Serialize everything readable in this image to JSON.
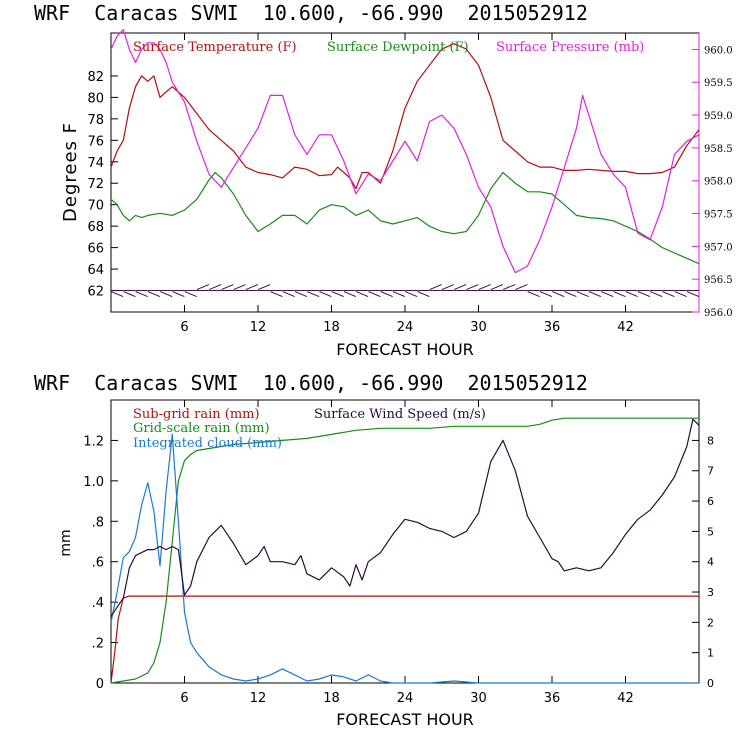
{
  "chart_data": [
    {
      "type": "line",
      "title": "WRF  Caracas SVMI  10.600, -66.990  2015052912",
      "xlabel": "FORECAST HOUR",
      "ylabel": "Degrees F",
      "y2label": "",
      "xlim": [
        0,
        48
      ],
      "ylim": [
        60,
        86
      ],
      "y2lim": [
        956.0,
        960.25
      ],
      "xticks": [
        6,
        12,
        18,
        24,
        30,
        36,
        42
      ],
      "xtick_labels": [
        "6",
        "12",
        "18",
        "24",
        "30",
        "36",
        "42"
      ],
      "yticks": [
        62,
        64,
        66,
        68,
        70,
        72,
        74,
        76,
        78,
        80,
        82
      ],
      "ytick_labels": [
        "62",
        "64",
        "66",
        "68",
        "70",
        "72",
        "74",
        "76",
        "78",
        "80",
        "82"
      ],
      "y2ticks": [
        956.0,
        956.5,
        957.0,
        957.5,
        958.0,
        958.5,
        959.0,
        959.5,
        960.0
      ],
      "y2tick_labels": [
        "956.0",
        "956.5",
        "957.0",
        "957.5",
        "958.0",
        "958.5",
        "959.0",
        "959.5",
        "960.0"
      ],
      "legend": [
        {
          "label": "Surface Temperature (F)",
          "color": "#b01010"
        },
        {
          "label": "Surface Dewpoint (F)",
          "color": "#1a8a1a"
        },
        {
          "label": "Surface Pressure (mb)",
          "color": "#e020e0"
        }
      ],
      "series": [
        {
          "name": "Surface Temperature (F)",
          "axis": "left",
          "color": "#b01010",
          "x": [
            0,
            0.5,
            1,
            1.5,
            2,
            2.5,
            3,
            3.5,
            4,
            4.5,
            5,
            5.5,
            6,
            7,
            8,
            9,
            10,
            11,
            12,
            13,
            14,
            15,
            16,
            17,
            18,
            18.5,
            19,
            19.5,
            20,
            20.5,
            21,
            22,
            23,
            24,
            25,
            26,
            27,
            28,
            29,
            30,
            31,
            32,
            33,
            34,
            35,
            36,
            37,
            38,
            39,
            40,
            41,
            42,
            43,
            44,
            45,
            46,
            47,
            48
          ],
          "values": [
            73.5,
            75,
            76,
            79,
            81,
            82,
            81.5,
            82,
            80,
            80.5,
            81,
            80.5,
            80,
            78.5,
            77,
            76,
            75,
            73.5,
            73,
            72.8,
            72.5,
            73.5,
            73.3,
            72.7,
            72.8,
            73.5,
            73,
            72.5,
            71.5,
            73,
            73,
            72,
            75,
            79,
            81.5,
            83,
            84.5,
            85,
            84.5,
            83,
            80,
            76,
            75,
            74,
            73.5,
            73.5,
            73.2,
            73.2,
            73.3,
            73.2,
            73.1,
            73.1,
            72.9,
            72.9,
            73,
            73.5,
            75.5,
            77
          ]
        },
        {
          "name": "Surface Dewpoint (F)",
          "axis": "left",
          "color": "#1a8a1a",
          "x": [
            0,
            0.5,
            1,
            1.5,
            2,
            2.5,
            3,
            4,
            5,
            6,
            7,
            8,
            8.5,
            9,
            10,
            11,
            12,
            13,
            14,
            15,
            16,
            17,
            18,
            19,
            20,
            21,
            22,
            23,
            24,
            25,
            26,
            27,
            28,
            29,
            30,
            31,
            32,
            33,
            34,
            35,
            36,
            37,
            38,
            39,
            40,
            41,
            42,
            43,
            44,
            45,
            46,
            47,
            48
          ],
          "values": [
            70.5,
            70,
            69,
            68.5,
            69,
            68.8,
            69,
            69.2,
            69,
            69.5,
            70.5,
            72.3,
            73,
            72.5,
            71,
            69,
            67.5,
            68.2,
            69,
            69,
            68.2,
            69.5,
            70,
            69.8,
            69,
            69.5,
            68.5,
            68.2,
            68.5,
            68.8,
            68,
            67.5,
            67.3,
            67.5,
            69,
            71.5,
            73,
            72,
            71.2,
            71.2,
            71,
            70,
            69,
            68.8,
            68.7,
            68.5,
            68,
            67.5,
            66.8,
            66,
            65.5,
            65,
            64.5
          ]
        },
        {
          "name": "Surface Pressure (mb)",
          "axis": "right",
          "color": "#e020e0",
          "x": [
            0,
            0.5,
            1,
            1.5,
            2,
            2.5,
            3,
            3.5,
            4,
            4.5,
            5,
            6,
            7,
            8,
            9,
            10,
            11,
            12,
            13,
            14,
            15,
            16,
            17,
            18,
            19,
            20,
            21,
            22,
            23,
            24,
            25,
            26,
            27,
            28,
            29,
            30,
            31,
            32,
            33,
            34,
            35,
            36,
            37,
            38,
            38.5,
            39,
            40,
            41,
            42,
            43,
            44,
            45,
            46,
            47,
            48
          ],
          "values": [
            960.0,
            960.2,
            960.3,
            960.0,
            959.8,
            960.0,
            960.1,
            960.1,
            960.0,
            959.8,
            959.5,
            959.2,
            958.6,
            958.1,
            957.9,
            958.2,
            958.5,
            958.8,
            959.3,
            959.3,
            958.7,
            958.4,
            958.7,
            958.7,
            958.3,
            957.8,
            958.1,
            958.0,
            958.3,
            958.6,
            958.3,
            958.9,
            959.0,
            958.8,
            958.4,
            957.9,
            957.6,
            957.0,
            956.6,
            956.7,
            957.1,
            957.6,
            958.2,
            958.8,
            959.3,
            959.0,
            958.4,
            958.1,
            957.9,
            957.2,
            957.1,
            957.6,
            958.4,
            958.6,
            958.7
          ]
        },
        {
          "name": "Wind barbs",
          "axis": "left",
          "color": "#3a0a3a",
          "x": [
            0,
            1,
            2,
            3,
            4,
            5,
            6,
            7,
            8,
            9,
            10,
            11,
            12,
            13,
            14,
            15,
            16,
            17,
            18,
            19,
            20,
            21,
            22,
            23,
            24,
            25,
            26,
            27,
            28,
            29,
            30,
            31,
            32,
            33,
            34,
            35,
            36,
            37,
            38,
            39,
            40,
            41,
            42,
            43,
            44,
            45,
            46,
            47
          ],
          "values": [
            62,
            62,
            62,
            62,
            62,
            62,
            62,
            62,
            62,
            62,
            62,
            62,
            62,
            62,
            62,
            62,
            62,
            62,
            62,
            62,
            62,
            62,
            62,
            62,
            62,
            62,
            62,
            62,
            62,
            62,
            62,
            62,
            62,
            62,
            62,
            62,
            62,
            62,
            62,
            62,
            62,
            62,
            62,
            62,
            62,
            62,
            62,
            62
          ]
        }
      ]
    },
    {
      "type": "line",
      "title": "WRF  Caracas SVMI  10.600, -66.990  2015052912",
      "xlabel": "FORECAST HOUR",
      "ylabel": "mm",
      "xlim": [
        0,
        48
      ],
      "ylim": [
        0,
        1.4
      ],
      "y2lim": [
        0,
        9.333
      ],
      "xticks": [
        6,
        12,
        18,
        24,
        30,
        36,
        42
      ],
      "xtick_labels": [
        "6",
        "12",
        "18",
        "24",
        "30",
        "36",
        "42"
      ],
      "yticks": [
        0,
        0.2,
        0.4,
        0.6,
        0.8,
        1.0,
        1.2
      ],
      "ytick_labels": [
        "0",
        ".2",
        ".4",
        ".6",
        ".8",
        "1.0",
        "1.2"
      ],
      "y2ticks": [
        0,
        1,
        2,
        3,
        4,
        5,
        6,
        7,
        8
      ],
      "y2tick_labels": [
        "0",
        "1",
        "2",
        "3",
        "4",
        "5",
        "6",
        "7",
        "8"
      ],
      "legend": [
        {
          "label": "Sub-grid rain (mm)",
          "color": "#b01010"
        },
        {
          "label": "Surface Wind Speed (m/s)",
          "color": "#2a0a3a"
        },
        {
          "label": "Grid-scale rain (mm)",
          "color": "#1a8a1a"
        },
        {
          "label": "Integrated cloud (mm)",
          "color": "#1a7ad0"
        }
      ],
      "series": [
        {
          "name": "Sub-grid rain (mm)",
          "axis": "left",
          "color": "#b01010",
          "x": [
            0,
            0.3,
            0.6,
            1,
            1.5,
            48
          ],
          "values": [
            0,
            0.15,
            0.32,
            0.42,
            0.43,
            0.43
          ]
        },
        {
          "name": "Grid-scale rain (mm)",
          "axis": "left",
          "color": "#1a8a1a",
          "x": [
            0,
            1,
            2,
            3,
            3.5,
            4,
            4.5,
            5,
            5.5,
            6,
            6.5,
            7,
            8,
            9,
            10,
            12,
            14,
            16,
            18,
            20,
            22,
            24,
            26,
            28,
            30,
            32,
            34,
            35,
            36,
            37,
            38,
            40,
            42,
            44,
            46,
            47,
            48
          ],
          "values": [
            0,
            0.01,
            0.02,
            0.05,
            0.1,
            0.2,
            0.4,
            0.7,
            1.0,
            1.1,
            1.13,
            1.15,
            1.16,
            1.17,
            1.18,
            1.19,
            1.2,
            1.21,
            1.23,
            1.25,
            1.26,
            1.26,
            1.26,
            1.27,
            1.27,
            1.27,
            1.27,
            1.28,
            1.3,
            1.31,
            1.31,
            1.31,
            1.31,
            1.31,
            1.31,
            1.31,
            1.31
          ]
        },
        {
          "name": "Integrated cloud (mm)",
          "axis": "left",
          "color": "#1a7ad0",
          "x": [
            0,
            0.5,
            1,
            1.5,
            2,
            2.5,
            3,
            3.5,
            4,
            4.5,
            5,
            5.5,
            6,
            6.5,
            7,
            8,
            9,
            10,
            11,
            12,
            13,
            14,
            15,
            16,
            17,
            18,
            19,
            20,
            21,
            22,
            23,
            24,
            26,
            28,
            30,
            32,
            34,
            36,
            38,
            40,
            42,
            44,
            46,
            48
          ],
          "values": [
            0.3,
            0.45,
            0.62,
            0.65,
            0.72,
            0.88,
            0.99,
            0.85,
            0.58,
            0.95,
            1.23,
            0.8,
            0.35,
            0.2,
            0.15,
            0.08,
            0.04,
            0.02,
            0.01,
            0.02,
            0.04,
            0.07,
            0.04,
            0.01,
            0.02,
            0.04,
            0.03,
            0.01,
            0.04,
            0.01,
            0.0,
            0.0,
            0.0,
            0.01,
            0.0,
            0.0,
            0.0,
            0.0,
            0.0,
            0.0,
            0.0,
            0.0,
            0.0,
            0.0
          ]
        },
        {
          "name": "Surface Wind Speed (m/s)",
          "axis": "right",
          "color": "#2a0a3a",
          "x": [
            0,
            0.5,
            1,
            1.5,
            2,
            2.5,
            3,
            3.5,
            4,
            4.5,
            5,
            5.5,
            6,
            6.5,
            7,
            8,
            8.5,
            9,
            9.5,
            10,
            11,
            12,
            12.5,
            13,
            14,
            15,
            15.5,
            16,
            17,
            18,
            19,
            19.5,
            20,
            20.5,
            21,
            22,
            23,
            24,
            25,
            26,
            27,
            28,
            29,
            30,
            31,
            32,
            33,
            34,
            35,
            36,
            36.5,
            37,
            38,
            39,
            40,
            41,
            42,
            43,
            44,
            45,
            46,
            47,
            47.5,
            48
          ],
          "values": [
            2.2,
            2.5,
            2.8,
            3.8,
            4.2,
            4.3,
            4.4,
            4.4,
            4.5,
            4.4,
            4.5,
            4.4,
            2.9,
            3.2,
            4.0,
            4.8,
            5.0,
            5.2,
            4.9,
            4.6,
            3.9,
            4.2,
            4.5,
            4.0,
            4.0,
            3.9,
            4.2,
            3.6,
            3.4,
            3.8,
            3.5,
            3.2,
            3.9,
            3.4,
            4.0,
            4.3,
            4.9,
            5.4,
            5.3,
            5.1,
            5.0,
            4.8,
            5.0,
            5.6,
            7.3,
            8.0,
            7.0,
            5.5,
            4.8,
            4.1,
            4.0,
            3.7,
            3.8,
            3.7,
            3.8,
            4.3,
            4.9,
            5.4,
            5.7,
            6.2,
            6.8,
            7.8,
            8.7,
            8.5
          ]
        }
      ]
    }
  ]
}
